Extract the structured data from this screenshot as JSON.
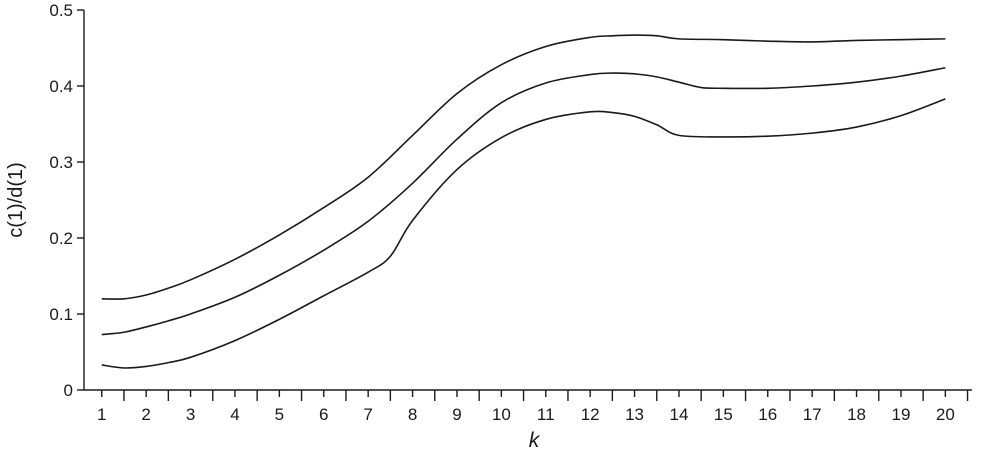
{
  "chart_data": {
    "type": "line",
    "title": "",
    "xlabel": "k",
    "ylabel": "c(1)/d(1)",
    "xlim": [
      0.6,
      20.6
    ],
    "ylim": [
      0,
      0.5
    ],
    "x_ticks": [
      1,
      2,
      3,
      4,
      5,
      6,
      7,
      8,
      9,
      10,
      11,
      12,
      13,
      14,
      15,
      16,
      17,
      18,
      19,
      20
    ],
    "y_ticks": [
      0,
      0.1,
      0.2,
      0.3,
      0.4,
      0.5
    ],
    "y_tick_labels": [
      "0",
      "0.1",
      "0.2",
      "0.3",
      "0.4",
      "0.5"
    ],
    "grid": false,
    "legend": "none",
    "line_color": "#1a1a1a",
    "series": [
      {
        "x": [
          1,
          1.5,
          2,
          2.5,
          3,
          4,
          5,
          6,
          7,
          8,
          9,
          10,
          11,
          12,
          12.5,
          13,
          13.5,
          14,
          15,
          16,
          17,
          18,
          19,
          20
        ],
        "values": [
          0.12,
          0.12,
          0.125,
          0.134,
          0.145,
          0.172,
          0.204,
          0.24,
          0.28,
          0.335,
          0.39,
          0.428,
          0.452,
          0.464,
          0.466,
          0.467,
          0.466,
          0.462,
          0.461,
          0.459,
          0.458,
          0.46,
          0.461,
          0.462
        ]
      },
      {
        "x": [
          1,
          1.5,
          2,
          2.5,
          3,
          4,
          5,
          6,
          7,
          8,
          9,
          10,
          11,
          12,
          12.5,
          13,
          13.5,
          14,
          14.5,
          15,
          16,
          17,
          18,
          19,
          20
        ],
        "values": [
          0.073,
          0.076,
          0.083,
          0.091,
          0.1,
          0.122,
          0.151,
          0.184,
          0.222,
          0.272,
          0.33,
          0.378,
          0.404,
          0.415,
          0.417,
          0.416,
          0.412,
          0.405,
          0.398,
          0.397,
          0.397,
          0.4,
          0.405,
          0.413,
          0.424
        ]
      },
      {
        "x": [
          1,
          1.5,
          2,
          2.5,
          3,
          4,
          5,
          6,
          7,
          7.5,
          8,
          9,
          10,
          11,
          12,
          12.5,
          13,
          13.5,
          14,
          15,
          16,
          17,
          18,
          19,
          20
        ],
        "values": [
          0.033,
          0.029,
          0.031,
          0.036,
          0.043,
          0.065,
          0.093,
          0.124,
          0.155,
          0.176,
          0.223,
          0.29,
          0.332,
          0.356,
          0.366,
          0.365,
          0.36,
          0.349,
          0.335,
          0.333,
          0.334,
          0.338,
          0.346,
          0.361,
          0.383
        ]
      }
    ]
  }
}
